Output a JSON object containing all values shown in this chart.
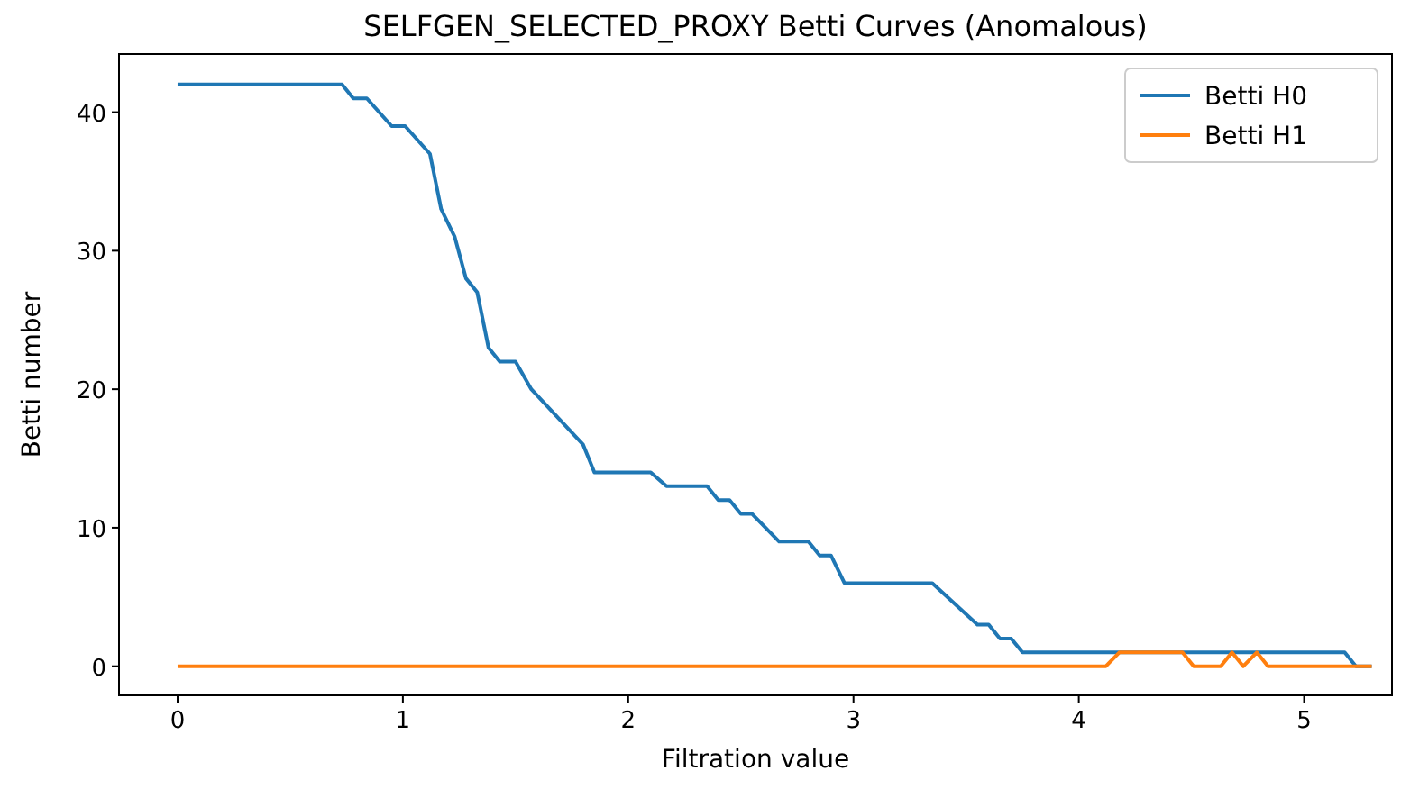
{
  "chart_data": {
    "type": "line",
    "title": "SELFGEN_SELECTED_PROXY Betti Curves (Anomalous)",
    "xlabel": "Filtration value",
    "ylabel": "Betti number",
    "series": [
      {
        "name": "Betti H0",
        "color": "#1f77b4",
        "x": [
          0,
          0.73,
          0.78,
          0.84,
          0.95,
          1.01,
          1.12,
          1.17,
          1.23,
          1.28,
          1.33,
          1.38,
          1.43,
          1.5,
          1.57,
          1.8,
          1.85,
          2.1,
          2.17,
          2.35,
          2.4,
          2.45,
          2.5,
          2.55,
          2.67,
          2.8,
          2.85,
          2.9,
          2.96,
          3.35,
          3.55,
          3.6,
          3.65,
          3.7,
          3.75,
          5.18,
          5.23,
          5.3
        ],
        "values": [
          42,
          42,
          41,
          41,
          39,
          39,
          37,
          33,
          31,
          28,
          27,
          23,
          22,
          22,
          20,
          16,
          14,
          14,
          13,
          13,
          12,
          12,
          11,
          11,
          9,
          9,
          8,
          8,
          6,
          6,
          3,
          3,
          2,
          2,
          1,
          1,
          0,
          0
        ]
      },
      {
        "name": "Betti H1",
        "color": "#ff7f0e",
        "x": [
          0,
          4.12,
          4.18,
          4.46,
          4.51,
          4.63,
          4.68,
          4.73,
          4.79,
          4.84,
          5.3
        ],
        "values": [
          0,
          0,
          1,
          1,
          0,
          0,
          1,
          0,
          1,
          0,
          0
        ]
      }
    ],
    "xlim": [
      -0.26,
      5.39
    ],
    "ylim": [
      -2.1,
      44.2
    ],
    "xticks": [
      0,
      1,
      2,
      3,
      4,
      5
    ],
    "yticks": [
      0,
      10,
      20,
      30,
      40
    ],
    "grid": false,
    "legend": "top right"
  }
}
